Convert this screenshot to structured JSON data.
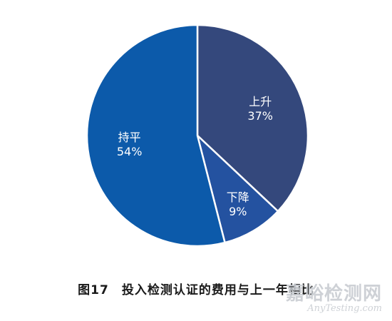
{
  "chart_data": {
    "type": "pie",
    "categories": [
      "上升",
      "下降",
      "持平"
    ],
    "values": [
      37,
      9,
      54
    ],
    "value_labels": [
      "37%",
      "9%",
      "54%"
    ],
    "colors": [
      "#34487c",
      "#2452a0",
      "#0c5aaa"
    ],
    "start_angle_deg": 0,
    "direction": "clockwise"
  },
  "caption": "图17　投入检测认证的费用与上一年相比",
  "watermark": {
    "cn": "嘉峪检测网",
    "en": "AnyTesting.com"
  }
}
